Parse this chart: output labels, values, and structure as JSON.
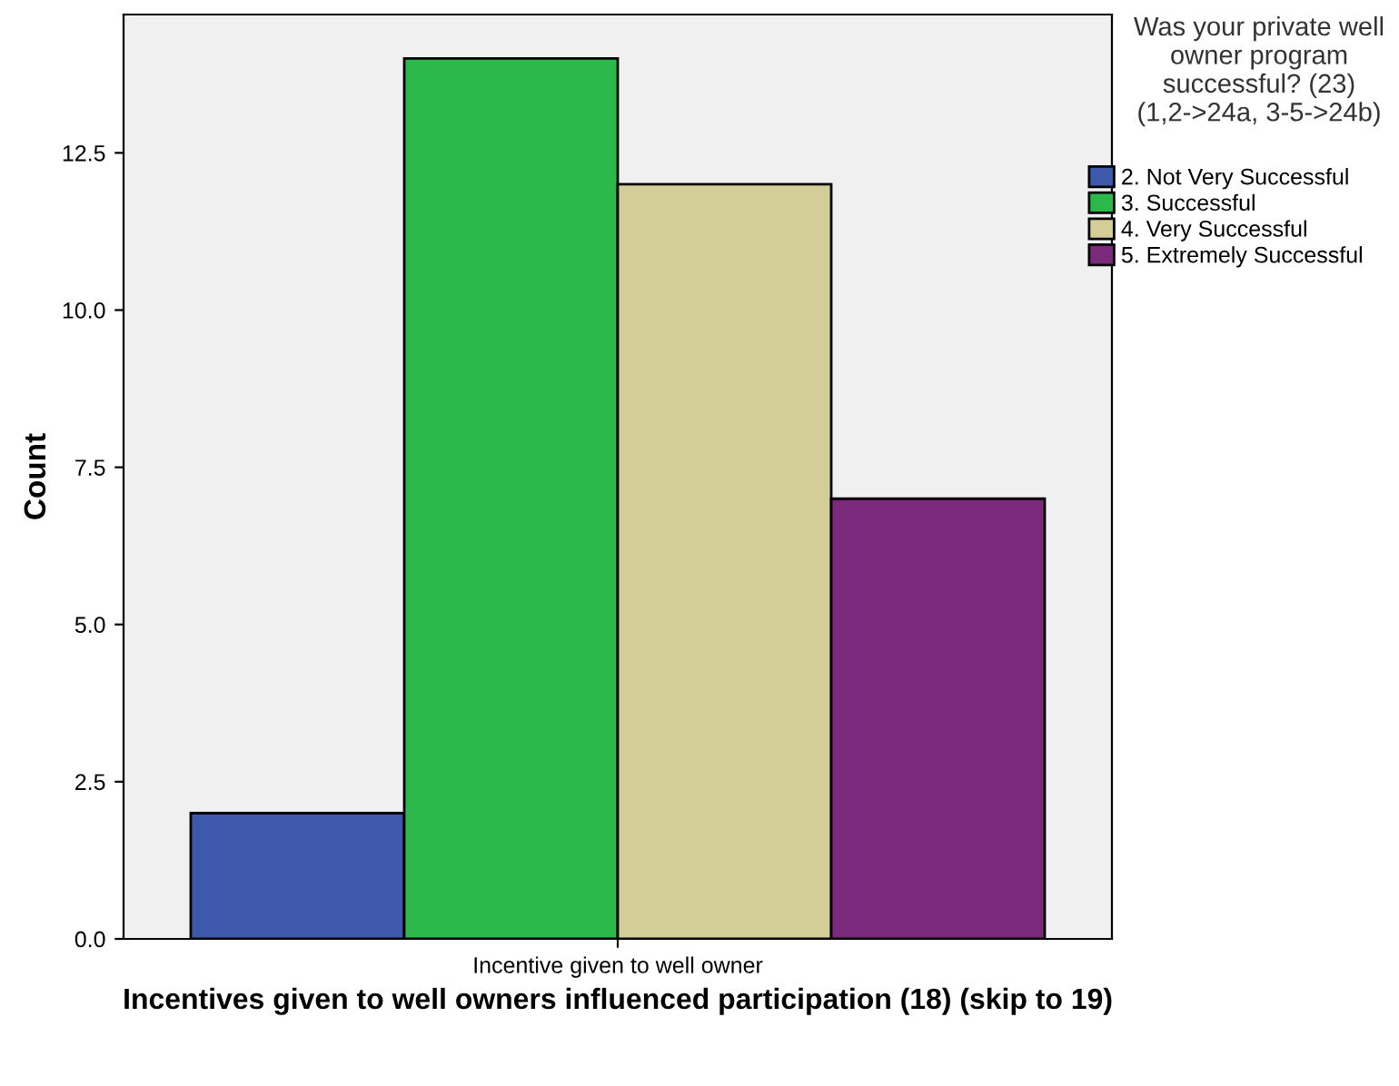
{
  "chart_data": {
    "type": "bar",
    "xlabel": "Incentives given to well owners influenced participation (18) (skip to 19)",
    "ylabel": "Count",
    "legend_title": "Was your private well owner program successful? (23) (1,2->24a, 3-5->24b)",
    "categories": [
      "Incentive given to well owner"
    ],
    "series": [
      {
        "name": "2. Not Very Successful",
        "color": "#3e58ac",
        "values": [
          2
        ]
      },
      {
        "name": "3. Successful",
        "color": "#2db84c",
        "values": [
          14
        ]
      },
      {
        "name": "4. Very Successful",
        "color": "#d3ce97",
        "values": [
          12
        ]
      },
      {
        "name": "5. Extremely Successful",
        "color": "#7b2a7b",
        "values": [
          7
        ]
      }
    ],
    "ylim": [
      0,
      14.7
    ],
    "yticks": [
      {
        "value": 0,
        "label": "0.0"
      },
      {
        "value": 2.5,
        "label": "2.5"
      },
      {
        "value": 5,
        "label": "5.0"
      },
      {
        "value": 7.5,
        "label": "7.5"
      },
      {
        "value": 10,
        "label": "10.0"
      },
      {
        "value": 12.5,
        "label": "12.5"
      }
    ],
    "grid": false,
    "legend": "right"
  }
}
